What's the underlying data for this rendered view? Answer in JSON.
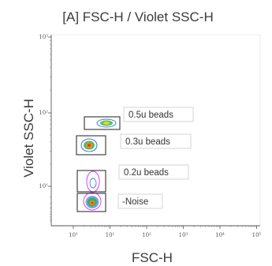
{
  "chart_data": {
    "type": "scatter",
    "title": "[A] FSC-H / Violet SSC-H",
    "xlabel": "FSC-H",
    "ylabel": "Violet SSC-H",
    "x_scale": "log",
    "y_scale": "log",
    "x_ticks": [
      "10¹",
      "10¹",
      "10²",
      "10³",
      "10⁴",
      "10⁵"
    ],
    "y_ticks": [
      "10³",
      "10²",
      "10¹"
    ],
    "grid": false,
    "gates": [
      {
        "label": "0.5u beads",
        "color": "#333333"
      },
      {
        "label": "0.3u beads",
        "color": "#333333"
      },
      {
        "label": "0.2u beads",
        "color": "#333333"
      },
      {
        "label": "-Noise",
        "color": "#333333"
      }
    ],
    "contour_colors": [
      "#e040fb",
      "#3f7fd9",
      "#2db34a",
      "#f0d020",
      "#f08a24",
      "#e03a2a"
    ]
  }
}
